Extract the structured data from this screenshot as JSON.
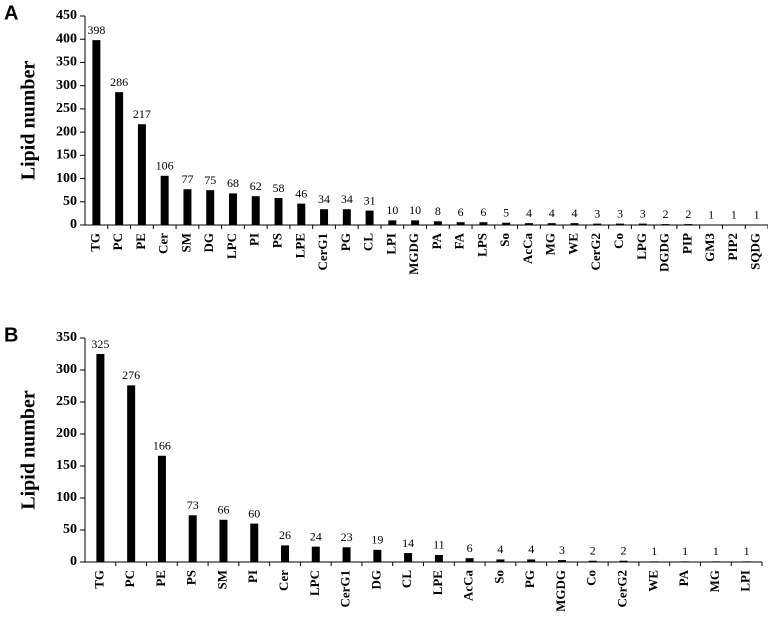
{
  "chart_data": [
    {
      "type": "bar",
      "label": "A",
      "y_label": "Lipid number",
      "color": "#000000",
      "categories": [
        "TG",
        "PC",
        "PE",
        "Cer",
        "SM",
        "DG",
        "LPC",
        "PI",
        "PS",
        "LPE",
        "CerG1",
        "PG",
        "CL",
        "LPI",
        "MGDG",
        "PA",
        "FA",
        "LPS",
        "So",
        "AcCa",
        "MG",
        "WE",
        "CerG2",
        "Co",
        "LPG",
        "DGDG",
        "PIP",
        "GM3",
        "PIP2",
        "SQDG"
      ],
      "values": [
        398,
        286,
        217,
        106,
        77,
        75,
        68,
        62,
        58,
        46,
        34,
        34,
        31,
        10,
        10,
        8,
        6,
        6,
        5,
        4,
        4,
        4,
        3,
        3,
        3,
        2,
        2,
        1,
        1,
        1
      ],
      "ylim": [
        0,
        450
      ],
      "yticks": [
        0,
        50,
        100,
        150,
        200,
        250,
        300,
        350,
        400,
        450
      ]
    },
    {
      "type": "bar",
      "label": "B",
      "y_label": "Lipid number",
      "color": "#000000",
      "categories": [
        "TG",
        "PC",
        "PE",
        "PS",
        "SM",
        "PI",
        "Cer",
        "LPC",
        "CerG1",
        "DG",
        "CL",
        "LPE",
        "AcCa",
        "So",
        "PG",
        "MGDG",
        "Co",
        "CerG2",
        "WE",
        "PA",
        "MG",
        "LPI"
      ],
      "values": [
        325,
        276,
        166,
        73,
        66,
        60,
        26,
        24,
        23,
        19,
        14,
        11,
        6,
        4,
        4,
        3,
        2,
        2,
        1,
        1,
        1,
        1
      ],
      "ylim": [
        0,
        350
      ],
      "yticks": [
        0,
        50,
        100,
        150,
        200,
        250,
        300,
        350
      ]
    }
  ]
}
